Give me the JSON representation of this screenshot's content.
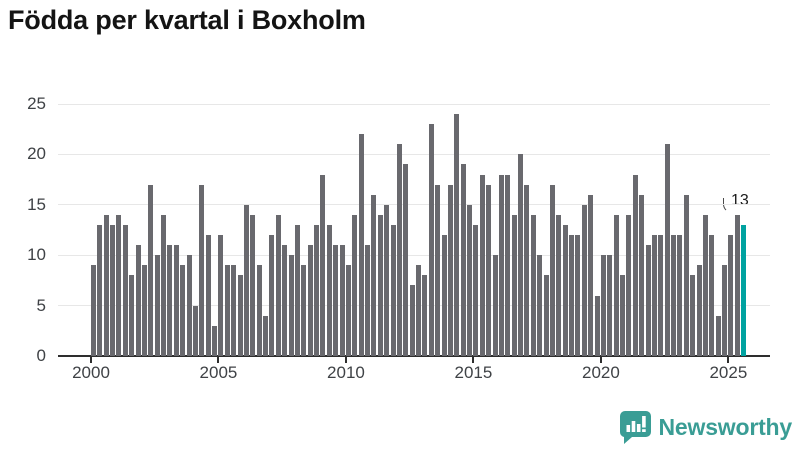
{
  "title": "Födda per kvartal i Boxholm",
  "chart_data": {
    "type": "bar",
    "title": "Födda per kvartal i Boxholm",
    "xlabel": "",
    "ylabel": "",
    "frequency": "quarterly",
    "start_period": "2000-Q1",
    "end_period": "2025-Q3",
    "values": [
      9,
      13,
      14,
      13,
      14,
      13,
      8,
      11,
      9,
      17,
      10,
      14,
      11,
      11,
      9,
      10,
      5,
      17,
      12,
      3,
      12,
      9,
      9,
      8,
      15,
      14,
      9,
      4,
      12,
      14,
      11,
      10,
      13,
      9,
      11,
      13,
      18,
      13,
      11,
      11,
      9,
      14,
      22,
      11,
      16,
      14,
      15,
      13,
      21,
      19,
      7,
      9,
      8,
      23,
      17,
      12,
      17,
      24,
      19,
      15,
      13,
      18,
      17,
      10,
      18,
      18,
      14,
      20,
      17,
      14,
      10,
      8,
      17,
      14,
      13,
      12,
      12,
      15,
      16,
      6,
      10,
      10,
      14,
      8,
      14,
      18,
      16,
      11,
      12,
      12,
      21,
      12,
      12,
      16,
      8,
      9,
      14,
      12,
      4,
      9,
      12,
      14,
      13
    ],
    "highlight_last": true,
    "annotation": {
      "label": "13",
      "index": 102
    },
    "x_ticks": [
      2000,
      2005,
      2010,
      2015,
      2020,
      2025
    ],
    "y_ticks": [
      0,
      5,
      10,
      15,
      20,
      25
    ],
    "ylim": [
      0,
      25
    ],
    "grid": "horizontal",
    "legend": "none",
    "colors": {
      "bar": "#69696e",
      "highlight": "#00a2a0"
    }
  },
  "footer": {
    "brand": "Newsworthy",
    "brand_color": "#3a9d95"
  }
}
